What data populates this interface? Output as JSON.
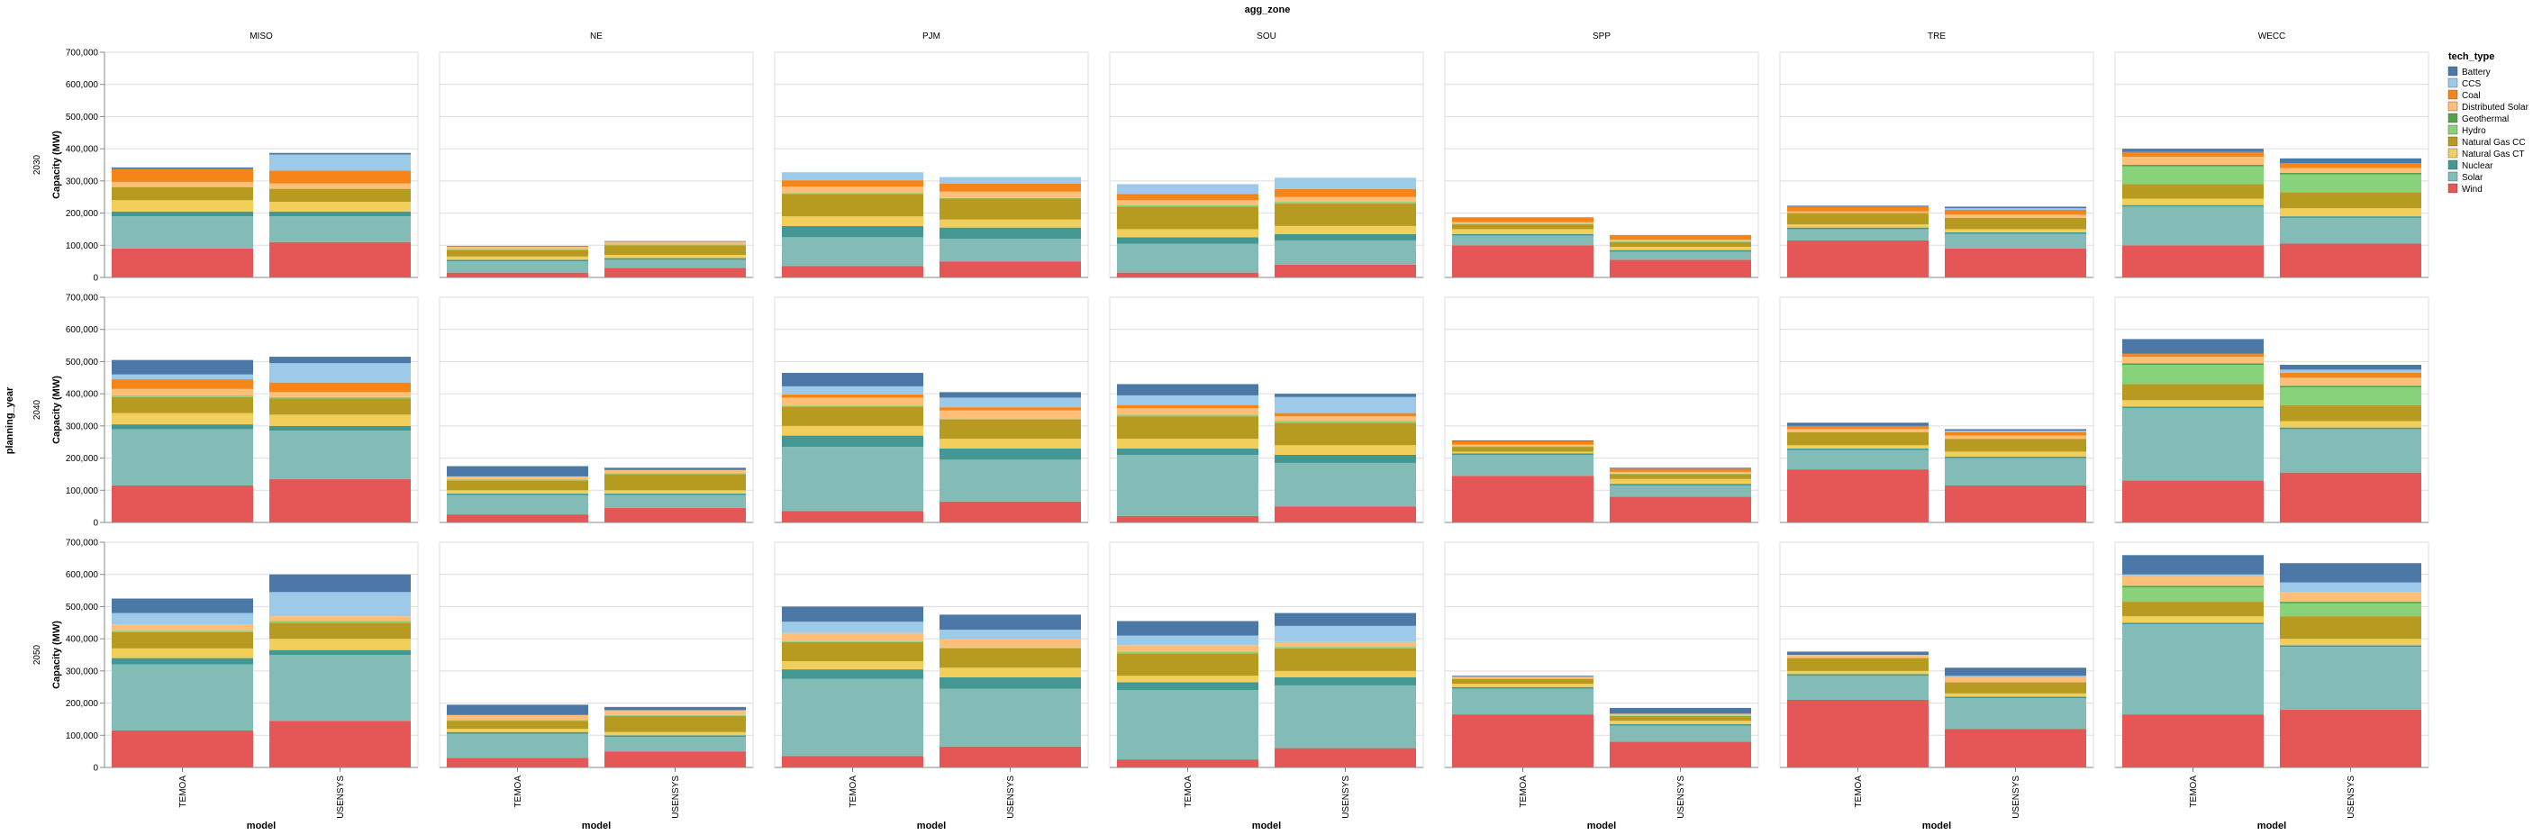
{
  "chart_data": {
    "type": "bar",
    "stacked": true,
    "title": "agg_zone",
    "row_label": "planning_year",
    "xlabel": "model",
    "ylabel": "Capacity (MW)",
    "ylim": [
      0,
      700000
    ],
    "yticks": [
      0,
      100000,
      200000,
      300000,
      400000,
      500000,
      600000,
      700000
    ],
    "ytick_labels": [
      "0",
      "100,000",
      "200,000",
      "300,000",
      "400,000",
      "500,000",
      "600,000",
      "700,000"
    ],
    "grid": true,
    "legend_placement": "right",
    "legend_title": "tech_type",
    "zones": [
      "MISO",
      "NE",
      "PJM",
      "SOU",
      "SPP",
      "TRE",
      "WECC"
    ],
    "years": [
      "2030",
      "2040",
      "2050"
    ],
    "models": [
      "TEMOA",
      "USENSYS"
    ],
    "tech_types": [
      "Battery",
      "CCS",
      "Coal",
      "Distributed Solar",
      "Geothermal",
      "Hydro",
      "Natural Gas CC",
      "Natural Gas CT",
      "Nuclear",
      "Solar",
      "Wind"
    ],
    "colors": {
      "Battery": "#4c78a8",
      "CCS": "#9ecae9",
      "Coal": "#f58518",
      "Distributed Solar": "#ffbf79",
      "Geothermal": "#54a24b",
      "Hydro": "#88d27a",
      "Natural Gas CC": "#b79a20",
      "Natural Gas CT": "#f2cf5b",
      "Nuclear": "#439894",
      "Solar": "#83bcb6",
      "Wind": "#e45756"
    },
    "stack_order_bottom_to_top": [
      "Wind",
      "Solar",
      "Nuclear",
      "Natural Gas CT",
      "Natural Gas CC",
      "Hydro",
      "Geothermal",
      "Distributed Solar",
      "Coal",
      "CCS",
      "Battery"
    ],
    "data": {
      "2030": {
        "MISO": {
          "TEMOA": {
            "Wind": 90000,
            "Solar": 100000,
            "Nuclear": 15000,
            "Natural Gas CT": 35000,
            "Natural Gas CC": 40000,
            "Hydro": 2000,
            "Geothermal": 0,
            "Distributed Solar": 15000,
            "Coal": 40000,
            "CCS": 0,
            "Battery": 5000
          },
          "USENSYS": {
            "Wind": 110000,
            "Solar": 80000,
            "Nuclear": 15000,
            "Natural Gas CT": 30000,
            "Natural Gas CC": 40000,
            "Hydro": 2000,
            "Geothermal": 0,
            "Distributed Solar": 15000,
            "Coal": 40000,
            "CCS": 50000,
            "Battery": 5000
          }
        },
        "NE": {
          "TEMOA": {
            "Wind": 15000,
            "Solar": 35000,
            "Nuclear": 5000,
            "Natural Gas CT": 10000,
            "Natural Gas CC": 20000,
            "Hydro": 3000,
            "Geothermal": 0,
            "Distributed Solar": 8000,
            "Coal": 0,
            "CCS": 0,
            "Battery": 2000
          },
          "USENSYS": {
            "Wind": 30000,
            "Solar": 25000,
            "Nuclear": 5000,
            "Natural Gas CT": 10000,
            "Natural Gas CC": 30000,
            "Hydro": 3000,
            "Geothermal": 0,
            "Distributed Solar": 8000,
            "Coal": 0,
            "CCS": 0,
            "Battery": 2000
          }
        },
        "PJM": {
          "TEMOA": {
            "Wind": 35000,
            "Solar": 90000,
            "Nuclear": 35000,
            "Natural Gas CT": 30000,
            "Natural Gas CC": 70000,
            "Hydro": 2000,
            "Geothermal": 0,
            "Distributed Solar": 20000,
            "Coal": 20000,
            "CCS": 25000,
            "Battery": 0
          },
          "USENSYS": {
            "Wind": 50000,
            "Solar": 70000,
            "Nuclear": 35000,
            "Natural Gas CT": 25000,
            "Natural Gas CC": 65000,
            "Hydro": 2000,
            "Geothermal": 0,
            "Distributed Solar": 20000,
            "Coal": 25000,
            "CCS": 20000,
            "Battery": 0
          }
        },
        "SOU": {
          "TEMOA": {
            "Wind": 15000,
            "Solar": 90000,
            "Nuclear": 20000,
            "Natural Gas CT": 25000,
            "Natural Gas CC": 70000,
            "Hydro": 5000,
            "Geothermal": 0,
            "Distributed Solar": 15000,
            "Coal": 20000,
            "CCS": 30000,
            "Battery": 0
          },
          "USENSYS": {
            "Wind": 40000,
            "Solar": 75000,
            "Nuclear": 20000,
            "Natural Gas CT": 25000,
            "Natural Gas CC": 70000,
            "Hydro": 5000,
            "Geothermal": 0,
            "Distributed Solar": 15000,
            "Coal": 25000,
            "CCS": 35000,
            "Battery": 0
          }
        },
        "SPP": {
          "TEMOA": {
            "Wind": 100000,
            "Solar": 30000,
            "Nuclear": 5000,
            "Natural Gas CT": 15000,
            "Natural Gas CC": 15000,
            "Hydro": 2000,
            "Geothermal": 0,
            "Distributed Solar": 5000,
            "Coal": 15000,
            "CCS": 0,
            "Battery": 0
          },
          "USENSYS": {
            "Wind": 55000,
            "Solar": 25000,
            "Nuclear": 5000,
            "Natural Gas CT": 10000,
            "Natural Gas CC": 15000,
            "Hydro": 2000,
            "Geothermal": 0,
            "Distributed Solar": 5000,
            "Coal": 15000,
            "CCS": 0,
            "Battery": 0
          }
        },
        "TRE": {
          "TEMOA": {
            "Wind": 115000,
            "Solar": 35000,
            "Nuclear": 5000,
            "Natural Gas CT": 10000,
            "Natural Gas CC": 35000,
            "Hydro": 0,
            "Geothermal": 0,
            "Distributed Solar": 5000,
            "Coal": 15000,
            "CCS": 0,
            "Battery": 3000
          },
          "USENSYS": {
            "Wind": 90000,
            "Solar": 45000,
            "Nuclear": 5000,
            "Natural Gas CT": 10000,
            "Natural Gas CC": 35000,
            "Hydro": 0,
            "Geothermal": 0,
            "Distributed Solar": 10000,
            "Coal": 15000,
            "CCS": 5000,
            "Battery": 5000
          }
        },
        "WECC": {
          "TEMOA": {
            "Wind": 100000,
            "Solar": 120000,
            "Nuclear": 5000,
            "Natural Gas CT": 20000,
            "Natural Gas CC": 45000,
            "Hydro": 55000,
            "Geothermal": 5000,
            "Distributed Solar": 25000,
            "Coal": 15000,
            "CCS": 0,
            "Battery": 10000
          },
          "USENSYS": {
            "Wind": 105000,
            "Solar": 80000,
            "Nuclear": 5000,
            "Natural Gas CT": 25000,
            "Natural Gas CC": 50000,
            "Hydro": 55000,
            "Geothermal": 5000,
            "Distributed Solar": 15000,
            "Coal": 15000,
            "CCS": 0,
            "Battery": 15000
          }
        }
      },
      "2040": {
        "MISO": {
          "TEMOA": {
            "Wind": 115000,
            "Solar": 175000,
            "Nuclear": 15000,
            "Natural Gas CT": 35000,
            "Natural Gas CC": 50000,
            "Hydro": 5000,
            "Geothermal": 0,
            "Distributed Solar": 20000,
            "Coal": 30000,
            "CCS": 15000,
            "Battery": 45000
          },
          "USENSYS": {
            "Wind": 135000,
            "Solar": 150000,
            "Nuclear": 15000,
            "Natural Gas CT": 35000,
            "Natural Gas CC": 50000,
            "Hydro": 5000,
            "Geothermal": 0,
            "Distributed Solar": 15000,
            "Coal": 30000,
            "CCS": 60000,
            "Battery": 20000
          }
        },
        "NE": {
          "TEMOA": {
            "Wind": 25000,
            "Solar": 60000,
            "Nuclear": 5000,
            "Natural Gas CT": 10000,
            "Natural Gas CC": 30000,
            "Hydro": 3000,
            "Geothermal": 0,
            "Distributed Solar": 10000,
            "Coal": 0,
            "CCS": 0,
            "Battery": 32000
          },
          "USENSYS": {
            "Wind": 45000,
            "Solar": 40000,
            "Nuclear": 5000,
            "Natural Gas CT": 10000,
            "Natural Gas CC": 50000,
            "Hydro": 3000,
            "Geothermal": 0,
            "Distributed Solar": 10000,
            "Coal": 0,
            "CCS": 0,
            "Battery": 7000
          }
        },
        "PJM": {
          "TEMOA": {
            "Wind": 35000,
            "Solar": 200000,
            "Nuclear": 35000,
            "Natural Gas CT": 30000,
            "Natural Gas CC": 60000,
            "Hydro": 3000,
            "Geothermal": 0,
            "Distributed Solar": 25000,
            "Coal": 10000,
            "CCS": 25000,
            "Battery": 42000
          },
          "USENSYS": {
            "Wind": 65000,
            "Solar": 130000,
            "Nuclear": 35000,
            "Natural Gas CT": 30000,
            "Natural Gas CC": 60000,
            "Hydro": 3000,
            "Geothermal": 0,
            "Distributed Solar": 25000,
            "Coal": 10000,
            "CCS": 30000,
            "Battery": 17000
          }
        },
        "SOU": {
          "TEMOA": {
            "Wind": 20000,
            "Solar": 190000,
            "Nuclear": 20000,
            "Natural Gas CT": 30000,
            "Natural Gas CC": 70000,
            "Hydro": 5000,
            "Geothermal": 0,
            "Distributed Solar": 20000,
            "Coal": 10000,
            "CCS": 30000,
            "Battery": 35000
          },
          "USENSYS": {
            "Wind": 50000,
            "Solar": 135000,
            "Nuclear": 25000,
            "Natural Gas CT": 30000,
            "Natural Gas CC": 70000,
            "Hydro": 5000,
            "Geothermal": 0,
            "Distributed Solar": 15000,
            "Coal": 10000,
            "CCS": 50000,
            "Battery": 10000
          }
        },
        "SPP": {
          "TEMOA": {
            "Wind": 145000,
            "Solar": 65000,
            "Nuclear": 5000,
            "Natural Gas CT": 5000,
            "Natural Gas CC": 15000,
            "Hydro": 2000,
            "Geothermal": 0,
            "Distributed Solar": 5000,
            "Coal": 10000,
            "CCS": 0,
            "Battery": 3000
          },
          "USENSYS": {
            "Wind": 80000,
            "Solar": 35000,
            "Nuclear": 5000,
            "Natural Gas CT": 15000,
            "Natural Gas CC": 15000,
            "Hydro": 2000,
            "Geothermal": 0,
            "Distributed Solar": 5000,
            "Coal": 10000,
            "CCS": 0,
            "Battery": 3000
          }
        },
        "TRE": {
          "TEMOA": {
            "Wind": 165000,
            "Solar": 60000,
            "Nuclear": 5000,
            "Natural Gas CT": 10000,
            "Natural Gas CC": 40000,
            "Hydro": 0,
            "Geothermal": 0,
            "Distributed Solar": 10000,
            "Coal": 10000,
            "CCS": 0,
            "Battery": 10000
          },
          "USENSYS": {
            "Wind": 115000,
            "Solar": 85000,
            "Nuclear": 5000,
            "Natural Gas CT": 15000,
            "Natural Gas CC": 40000,
            "Hydro": 0,
            "Geothermal": 0,
            "Distributed Solar": 10000,
            "Coal": 10000,
            "CCS": 5000,
            "Battery": 5000
          }
        },
        "WECC": {
          "TEMOA": {
            "Wind": 130000,
            "Solar": 225000,
            "Nuclear": 5000,
            "Natural Gas CT": 20000,
            "Natural Gas CC": 50000,
            "Hydro": 60000,
            "Geothermal": 5000,
            "Distributed Solar": 20000,
            "Coal": 10000,
            "CCS": 0,
            "Battery": 45000
          },
          "USENSYS": {
            "Wind": 155000,
            "Solar": 135000,
            "Nuclear": 5000,
            "Natural Gas CT": 20000,
            "Natural Gas CC": 50000,
            "Hydro": 55000,
            "Geothermal": 5000,
            "Distributed Solar": 25000,
            "Coal": 15000,
            "CCS": 10000,
            "Battery": 15000
          }
        }
      },
      "2050": {
        "MISO": {
          "TEMOA": {
            "Wind": 115000,
            "Solar": 205000,
            "Nuclear": 20000,
            "Natural Gas CT": 30000,
            "Natural Gas CC": 50000,
            "Hydro": 5000,
            "Geothermal": 0,
            "Distributed Solar": 20000,
            "Coal": 0,
            "CCS": 35000,
            "Battery": 45000
          },
          "USENSYS": {
            "Wind": 145000,
            "Solar": 205000,
            "Nuclear": 15000,
            "Natural Gas CT": 35000,
            "Natural Gas CC": 50000,
            "Hydro": 5000,
            "Geothermal": 0,
            "Distributed Solar": 15000,
            "Coal": 0,
            "CCS": 75000,
            "Battery": 55000
          }
        },
        "NE": {
          "TEMOA": {
            "Wind": 30000,
            "Solar": 75000,
            "Nuclear": 5000,
            "Natural Gas CT": 10000,
            "Natural Gas CC": 25000,
            "Hydro": 3000,
            "Geothermal": 0,
            "Distributed Solar": 15000,
            "Coal": 0,
            "CCS": 0,
            "Battery": 32000
          },
          "USENSYS": {
            "Wind": 50000,
            "Solar": 45000,
            "Nuclear": 5000,
            "Natural Gas CT": 10000,
            "Natural Gas CC": 50000,
            "Hydro": 3000,
            "Geothermal": 0,
            "Distributed Solar": 15000,
            "Coal": 0,
            "CCS": 0,
            "Battery": 10000
          }
        },
        "PJM": {
          "TEMOA": {
            "Wind": 35000,
            "Solar": 240000,
            "Nuclear": 30000,
            "Natural Gas CT": 25000,
            "Natural Gas CC": 60000,
            "Hydro": 3000,
            "Geothermal": 0,
            "Distributed Solar": 25000,
            "Coal": 0,
            "CCS": 35000,
            "Battery": 47000
          },
          "USENSYS": {
            "Wind": 65000,
            "Solar": 180000,
            "Nuclear": 35000,
            "Natural Gas CT": 30000,
            "Natural Gas CC": 60000,
            "Hydro": 3000,
            "Geothermal": 0,
            "Distributed Solar": 25000,
            "Coal": 0,
            "CCS": 30000,
            "Battery": 47000
          }
        },
        "SOU": {
          "TEMOA": {
            "Wind": 25000,
            "Solar": 215000,
            "Nuclear": 25000,
            "Natural Gas CT": 20000,
            "Natural Gas CC": 70000,
            "Hydro": 5000,
            "Geothermal": 0,
            "Distributed Solar": 20000,
            "Coal": 0,
            "CCS": 30000,
            "Battery": 45000
          },
          "USENSYS": {
            "Wind": 60000,
            "Solar": 195000,
            "Nuclear": 25000,
            "Natural Gas CT": 20000,
            "Natural Gas CC": 70000,
            "Hydro": 5000,
            "Geothermal": 0,
            "Distributed Solar": 15000,
            "Coal": 0,
            "CCS": 50000,
            "Battery": 40000
          }
        },
        "SPP": {
          "TEMOA": {
            "Wind": 165000,
            "Solar": 80000,
            "Nuclear": 5000,
            "Natural Gas CT": 10000,
            "Natural Gas CC": 15000,
            "Hydro": 2000,
            "Geothermal": 0,
            "Distributed Solar": 5000,
            "Coal": 0,
            "CCS": 0,
            "Battery": 3000
          },
          "USENSYS": {
            "Wind": 80000,
            "Solar": 50000,
            "Nuclear": 5000,
            "Natural Gas CT": 10000,
            "Natural Gas CC": 15000,
            "Hydro": 2000,
            "Geothermal": 0,
            "Distributed Solar": 5000,
            "Coal": 0,
            "CCS": 0,
            "Battery": 18000
          }
        },
        "TRE": {
          "TEMOA": {
            "Wind": 210000,
            "Solar": 75000,
            "Nuclear": 5000,
            "Natural Gas CT": 10000,
            "Natural Gas CC": 40000,
            "Hydro": 0,
            "Geothermal": 0,
            "Distributed Solar": 10000,
            "Coal": 0,
            "CCS": 0,
            "Battery": 10000
          },
          "USENSYS": {
            "Wind": 120000,
            "Solar": 95000,
            "Nuclear": 5000,
            "Natural Gas CT": 10000,
            "Natural Gas CC": 35000,
            "Hydro": 0,
            "Geothermal": 0,
            "Distributed Solar": 15000,
            "Coal": 0,
            "CCS": 5000,
            "Battery": 25000
          }
        },
        "WECC": {
          "TEMOA": {
            "Wind": 165000,
            "Solar": 280000,
            "Nuclear": 5000,
            "Natural Gas CT": 20000,
            "Natural Gas CC": 45000,
            "Hydro": 45000,
            "Geothermal": 5000,
            "Distributed Solar": 30000,
            "Coal": 0,
            "CCS": 5000,
            "Battery": 60000
          },
          "USENSYS": {
            "Wind": 180000,
            "Solar": 195000,
            "Nuclear": 5000,
            "Natural Gas CT": 20000,
            "Natural Gas CC": 70000,
            "Hydro": 40000,
            "Geothermal": 5000,
            "Distributed Solar": 30000,
            "Coal": 0,
            "CCS": 30000,
            "Battery": 60000
          }
        }
      }
    }
  }
}
